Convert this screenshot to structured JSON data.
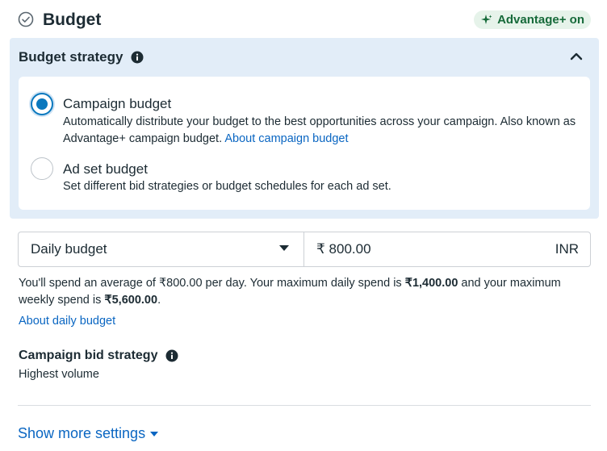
{
  "header": {
    "title": "Budget",
    "badge": "Advantage+ on"
  },
  "strategy": {
    "title": "Budget strategy",
    "options": [
      {
        "label": "Campaign budget",
        "desc_prefix": "Automatically distribute your budget to the best opportunities across your campaign. Also known as Advantage+ campaign budget. ",
        "link": "About campaign budget",
        "selected": true
      },
      {
        "label": "Ad set budget",
        "desc": "Set different bid strategies or budget schedules for each ad set.",
        "selected": false
      }
    ]
  },
  "budget": {
    "type": "Daily budget",
    "amount": "₹ 800.00",
    "currency": "INR"
  },
  "spend": {
    "p1": "You'll spend an average of ₹800.00 per day. Your maximum daily spend is ",
    "daily_max": "₹1,400.00",
    "p2": " and your maximum weekly spend is ",
    "weekly_max": "₹5,600.00",
    "p3": ".",
    "link": "About daily budget"
  },
  "bid": {
    "title": "Campaign bid strategy",
    "value": "Highest volume"
  },
  "footer": {
    "more": "Show more settings"
  },
  "colors": {
    "accent": "#0a78be",
    "link": "#0a66c2",
    "panel": "#e2edf8",
    "badge_bg": "#e6f3ea",
    "badge_text": "#166a3a"
  }
}
